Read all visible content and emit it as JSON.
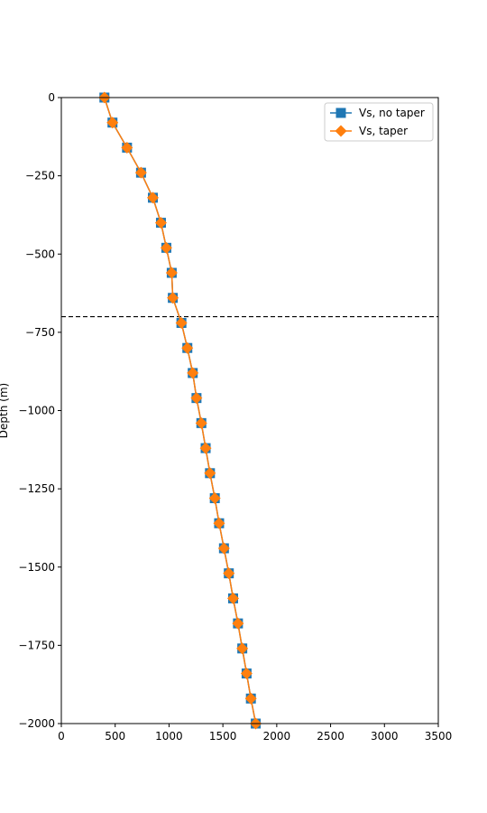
{
  "chart_data": {
    "type": "line",
    "title": "",
    "xlabel": "",
    "ylabel": "Depth (m)",
    "xlim": [
      0,
      3500
    ],
    "ylim": [
      -2000,
      0
    ],
    "xticks": [
      0,
      500,
      1000,
      1500,
      2000,
      2500,
      3000,
      3500
    ],
    "yticks": [
      0,
      -250,
      -500,
      -750,
      -1000,
      -1250,
      -1500,
      -1750,
      -2000
    ],
    "xtick_labels": [
      "0",
      "500",
      "1000",
      "1500",
      "2000",
      "2500",
      "3000",
      "3500"
    ],
    "ytick_labels": [
      "0",
      "−250",
      "−500",
      "−750",
      "−1000",
      "−1250",
      "−1500",
      "−1750",
      "−2000"
    ],
    "grid": false,
    "legend_position": "top-right",
    "hline": {
      "y": -700,
      "style": "dashed",
      "color": "#000000"
    },
    "series": [
      {
        "name": "Vs, no taper",
        "color": "#1f77b4",
        "marker": "square",
        "x": [
          400,
          475,
          610,
          740,
          850,
          925,
          975,
          1025,
          1035,
          1115,
          1170,
          1220,
          1255,
          1300,
          1340,
          1380,
          1425,
          1465,
          1510,
          1555,
          1595,
          1640,
          1680,
          1720,
          1760,
          1805
        ],
        "y": [
          0,
          -80,
          -160,
          -240,
          -320,
          -400,
          -480,
          -560,
          -640,
          -720,
          -800,
          -880,
          -960,
          -1040,
          -1120,
          -1200,
          -1280,
          -1360,
          -1440,
          -1520,
          -1600,
          -1680,
          -1760,
          -1840,
          -1920,
          -2000
        ]
      },
      {
        "name": "Vs, taper",
        "color": "#ff7f0e",
        "marker": "diamond",
        "x": [
          400,
          475,
          610,
          740,
          850,
          925,
          975,
          1025,
          1035,
          1115,
          1170,
          1220,
          1255,
          1300,
          1340,
          1380,
          1425,
          1465,
          1510,
          1555,
          1595,
          1640,
          1680,
          1720,
          1760,
          1805
        ],
        "y": [
          0,
          -80,
          -160,
          -240,
          -320,
          -400,
          -480,
          -560,
          -640,
          -720,
          -800,
          -880,
          -960,
          -1040,
          -1120,
          -1200,
          -1280,
          -1360,
          -1440,
          -1520,
          -1600,
          -1680,
          -1760,
          -1840,
          -1920,
          -2000
        ]
      }
    ]
  }
}
